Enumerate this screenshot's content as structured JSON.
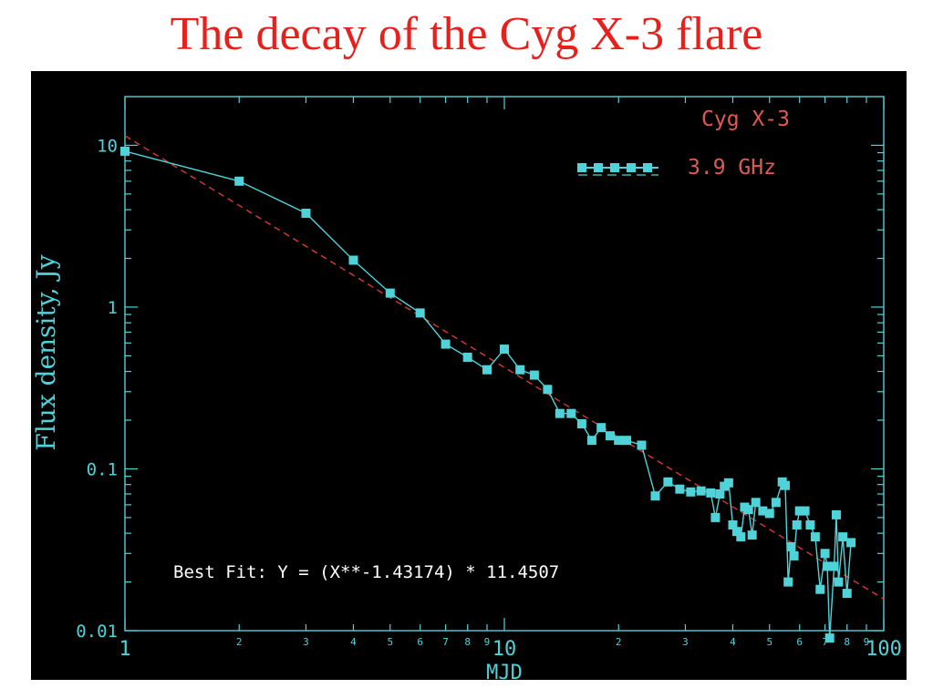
{
  "slide": {
    "title": "The decay of the Cyg X-3 flare"
  },
  "colors": {
    "panel_bg": "#000000",
    "axis": "#4fd2d8",
    "data_series": "#4fd2d8",
    "fit_line": "#d83a34",
    "source_label": "#e05a55",
    "annotation": "#ffffff",
    "title": "#e8201c"
  },
  "chart_data": {
    "type": "line",
    "xscale": "log",
    "yscale": "log",
    "xlim": [
      1,
      100
    ],
    "ylim": [
      0.01,
      20
    ],
    "xlabel": "MJD",
    "ylabel": "Flux density, Jy",
    "x_major_ticks": [
      {
        "value": 1,
        "label": "1"
      },
      {
        "value": 10,
        "label": "10"
      },
      {
        "value": 100,
        "label": "100"
      }
    ],
    "x_minor_ticks": [
      {
        "value": 2,
        "label": "2"
      },
      {
        "value": 3,
        "label": "3"
      },
      {
        "value": 4,
        "label": "4"
      },
      {
        "value": 5,
        "label": "5"
      },
      {
        "value": 6,
        "label": "6"
      },
      {
        "value": 7,
        "label": "7"
      },
      {
        "value": 8,
        "label": "8"
      },
      {
        "value": 9,
        "label": "9"
      },
      {
        "value": 20,
        "label": "2"
      },
      {
        "value": 30,
        "label": "3"
      },
      {
        "value": 40,
        "label": "4"
      },
      {
        "value": 50,
        "label": "5"
      },
      {
        "value": 60,
        "label": "6"
      },
      {
        "value": 70,
        "label": "7"
      },
      {
        "value": 80,
        "label": "8"
      },
      {
        "value": 90,
        "label": "9"
      }
    ],
    "y_major_ticks": [
      {
        "value": 10,
        "label": "10"
      },
      {
        "value": 1,
        "label": "1"
      },
      {
        "value": 0.1,
        "label": "0.1"
      },
      {
        "value": 0.01,
        "label": "0.01"
      }
    ],
    "legend": {
      "source": "Cyg X-3",
      "placement": "top-right",
      "entries": [
        {
          "name": "3.9 GHz",
          "marker": "square",
          "color": "#4fd2d8"
        }
      ]
    },
    "series": [
      {
        "name": "3.9 GHz",
        "points": [
          [
            1.0,
            9.2
          ],
          [
            2.0,
            6.0
          ],
          [
            3.0,
            3.8
          ],
          [
            4.0,
            1.95
          ],
          [
            5.0,
            1.22
          ],
          [
            6.0,
            0.92
          ],
          [
            7.0,
            0.59
          ],
          [
            8.0,
            0.49
          ],
          [
            9.0,
            0.41
          ],
          [
            10.0,
            0.55
          ],
          [
            11.0,
            0.41
          ],
          [
            12.0,
            0.38
          ],
          [
            13.0,
            0.31
          ],
          [
            14.0,
            0.22
          ],
          [
            15.0,
            0.22
          ],
          [
            16.0,
            0.19
          ],
          [
            17.0,
            0.15
          ],
          [
            18.0,
            0.18
          ],
          [
            19.0,
            0.16
          ],
          [
            20.0,
            0.15
          ],
          [
            21.0,
            0.15
          ],
          [
            23.0,
            0.14
          ],
          [
            25.0,
            0.068
          ],
          [
            27.0,
            0.083
          ],
          [
            29.0,
            0.075
          ],
          [
            31.0,
            0.072
          ],
          [
            33.0,
            0.073
          ],
          [
            35.0,
            0.071
          ],
          [
            36.0,
            0.05
          ],
          [
            37.0,
            0.07
          ],
          [
            38.0,
            0.078
          ],
          [
            39.0,
            0.082
          ],
          [
            40.0,
            0.045
          ],
          [
            41.0,
            0.041
          ],
          [
            42.0,
            0.038
          ],
          [
            43.0,
            0.058
          ],
          [
            44.0,
            0.056
          ],
          [
            45.0,
            0.039
          ],
          [
            46.0,
            0.062
          ],
          [
            48.0,
            0.055
          ],
          [
            50.0,
            0.053
          ],
          [
            52.0,
            0.062
          ],
          [
            54.0,
            0.083
          ],
          [
            55.0,
            0.079
          ],
          [
            56.0,
            0.02
          ],
          [
            57.0,
            0.033
          ],
          [
            58.0,
            0.029
          ],
          [
            59.0,
            0.045
          ],
          [
            60.0,
            0.055
          ],
          [
            62.0,
            0.055
          ],
          [
            64.0,
            0.045
          ],
          [
            66.0,
            0.038
          ],
          [
            68.0,
            0.018
          ],
          [
            70.0,
            0.03
          ],
          [
            71.0,
            0.025
          ],
          [
            72.0,
            0.009
          ],
          [
            74.0,
            0.025
          ],
          [
            75.0,
            0.052
          ],
          [
            76.0,
            0.02
          ],
          [
            78.0,
            0.038
          ],
          [
            80.0,
            0.017
          ],
          [
            82.0,
            0.035
          ]
        ]
      }
    ],
    "fit": {
      "label": "Best Fit:  Y = (X**-1.43174) * 11.4507",
      "exponent": -1.43174,
      "coefficient": 11.4507,
      "style": "dashed",
      "color": "#d83a34"
    }
  }
}
